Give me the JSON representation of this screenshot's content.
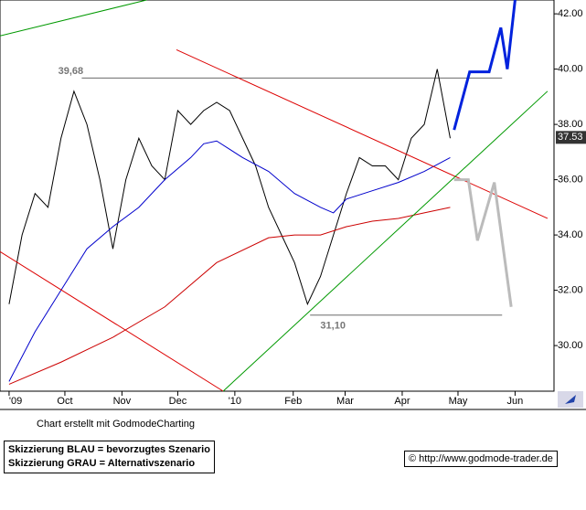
{
  "chart_data": {
    "type": "line",
    "xlim": [
      -0.7,
      42
    ],
    "ylim": [
      28.35,
      42.5
    ],
    "xticks": [
      {
        "value": 0,
        "label": "'09"
      },
      {
        "value": 4.3,
        "label": "Oct"
      },
      {
        "value": 8.7,
        "label": "Nov"
      },
      {
        "value": 13,
        "label": "Dec"
      },
      {
        "value": 17.4,
        "label": "'10"
      },
      {
        "value": 21.9,
        "label": "Feb"
      },
      {
        "value": 25.9,
        "label": "Mar"
      },
      {
        "value": 30.3,
        "label": "Apr"
      },
      {
        "value": 34.6,
        "label": "May"
      },
      {
        "value": 39,
        "label": "Jun"
      }
    ],
    "yticks": [
      {
        "value": 30,
        "label": "30.00"
      },
      {
        "value": 32,
        "label": "32.00"
      },
      {
        "value": 34,
        "label": "34.00"
      },
      {
        "value": 36,
        "label": "36.00"
      },
      {
        "value": 38,
        "label": "38.00"
      },
      {
        "value": 40,
        "label": "40.00"
      },
      {
        "value": 42,
        "label": "42.00"
      }
    ],
    "last_price": 37.53,
    "levels": [
      {
        "value": 39.68,
        "label": "39,68",
        "x": [
          5.6,
          38
        ]
      },
      {
        "value": 31.1,
        "label": "31,10",
        "x": [
          23.2,
          38
        ]
      }
    ],
    "series": [
      {
        "color": "#000000",
        "line_style": "solid",
        "x": [
          0,
          1,
          2,
          3,
          4,
          5,
          6,
          7,
          8,
          9,
          10,
          11,
          12,
          13,
          14,
          15,
          16,
          17,
          18,
          19,
          20,
          21,
          22,
          23,
          24,
          25,
          26,
          27,
          28,
          29,
          30,
          31,
          32,
          33,
          34
        ],
        "values": [
          31.5,
          34.0,
          35.5,
          35.0,
          37.5,
          39.2,
          38.0,
          36.0,
          33.5,
          36.0,
          37.5,
          36.5,
          36.0,
          38.5,
          38.0,
          38.5,
          38.8,
          38.5,
          37.5,
          36.5,
          35.0,
          34.0,
          33.0,
          31.5,
          32.5,
          34.0,
          35.5,
          36.8,
          36.5,
          36.5,
          36.0,
          37.5,
          38.0,
          40.0,
          37.5
        ]
      },
      {
        "color": "#0000cc",
        "line_style": "solid",
        "x": [
          0,
          2,
          4,
          6,
          8,
          10,
          12,
          14,
          15,
          16,
          18,
          20,
          22,
          24,
          25,
          26,
          28,
          30,
          32,
          34
        ],
        "values": [
          28.7,
          30.5,
          32.0,
          33.5,
          34.3,
          35.0,
          36.0,
          36.8,
          37.3,
          37.4,
          36.8,
          36.3,
          35.5,
          35.0,
          34.8,
          35.3,
          35.6,
          35.9,
          36.3,
          36.8
        ]
      },
      {
        "color": "#cc0000",
        "line_style": "solid",
        "x": [
          0,
          4,
          8,
          12,
          16,
          20,
          22,
          24,
          26,
          28,
          30,
          32,
          34
        ],
        "values": [
          28.6,
          29.4,
          30.3,
          31.4,
          33.0,
          33.9,
          34.0,
          34.0,
          34.3,
          34.5,
          34.6,
          34.8,
          35.0
        ]
      },
      {
        "color": "#dd0000",
        "line_style": "thin",
        "x": [
          12.9,
          41.5
        ],
        "values": [
          40.7,
          34.6
        ]
      },
      {
        "color": "#dd0000",
        "line_style": "thin",
        "x": [
          -0.7,
          16.5
        ],
        "values": [
          33.4,
          28.35
        ]
      },
      {
        "color": "#009900",
        "line_style": "thin",
        "x": [
          -0.7,
          10.6
        ],
        "values": [
          41.2,
          42.5
        ]
      },
      {
        "color": "#009900",
        "line_style": "thin",
        "x": [
          16.5,
          41.5
        ],
        "values": [
          28.35,
          39.2
        ]
      },
      {
        "color": "#0022dd",
        "line_style": "bold",
        "x": [
          34.3,
          35.5,
          37,
          37.9,
          38.4,
          39
        ],
        "values": [
          37.8,
          39.9,
          39.9,
          41.5,
          40.0,
          42.5
        ]
      },
      {
        "color": "#bbbbbb",
        "line_style": "bold",
        "x": [
          34.3,
          35.4,
          36.1,
          37.4,
          38.7
        ],
        "values": [
          36.0,
          36.0,
          33.8,
          35.9,
          31.4
        ]
      }
    ]
  },
  "footer": {
    "credit": "Chart erstellt mit GodmodeCharting",
    "legend": [
      "Skizzierung BLAU = bevorzugtes Szenario",
      "Skizzierung GRAU = Alternativszenario"
    ],
    "url": "© http://www.godmode-trader.de"
  }
}
